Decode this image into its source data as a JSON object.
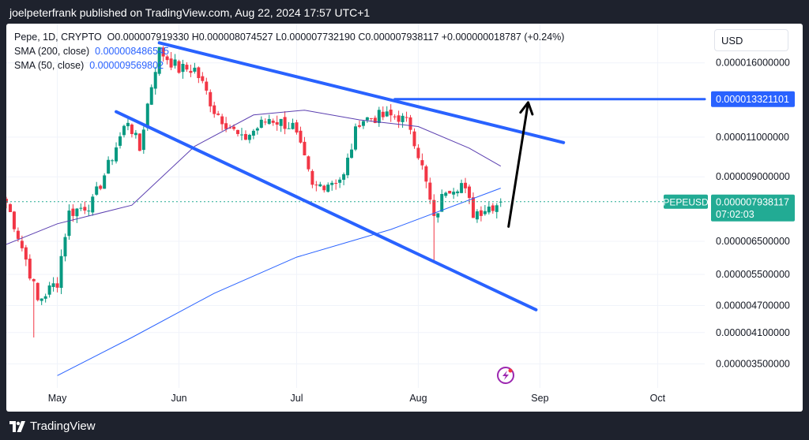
{
  "header": {
    "publisher_line": "joelpeterfrank published on TradingView.com, Aug 22, 2024 17:57 UTC+1"
  },
  "legend": {
    "symbol_line": "Pepe, 1D, CRYPTO",
    "ohlc": "O0.000007919330 H0.000008074527 L0.000007732190 C0.000007938117 +0.000000018787 (+0.24%)",
    "sma200_label": "SMA (200, close)",
    "sma200_value": "0.000008486545",
    "sma50_label": "SMA (50, close)",
    "sma50_value": "0.000009569802"
  },
  "currency_button": "USD",
  "brand": {
    "name": "TradingView",
    "logo_icon": "tradingview-logo-icon"
  },
  "colors": {
    "up": "#089981",
    "down": "#f23645",
    "sma200": "#2962ff",
    "sma50": "#5b3fb0",
    "drawing": "#2962ff",
    "arrow": "#000000",
    "price_tag": "#22ab94",
    "grid": "#f0f3fa"
  },
  "chart_data": {
    "type": "candlestick",
    "symbol": "PEPEUSD",
    "interval": "1D",
    "x_tick_labels": [
      "May",
      "Jun",
      "Jul",
      "Aug",
      "Sep",
      "Oct"
    ],
    "x_ticks": [
      "2024-05-01",
      "2024-06-01",
      "2024-07-01",
      "2024-08-01",
      "2024-09-01",
      "2024-10-01"
    ],
    "y_scale": "log",
    "y_tick_labels": [
      "0.000016000000",
      "0.000011000000",
      "0.000009000000",
      "0.000006500000",
      "0.000005500000",
      "0.000004700000",
      "0.000004100000",
      "0.000003500000"
    ],
    "y_ticks": [
      1.6e-05,
      1.1e-05,
      9e-06,
      6.5e-06,
      5.5e-06,
      4.7e-06,
      4.1e-06,
      3.5e-06
    ],
    "x_range": [
      "2024-04-18",
      "2024-10-13"
    ],
    "y_range": [
      3.1e-06,
      1.95e-05
    ],
    "last_price": {
      "label": "PEPEUSD",
      "value": "0.000007938117",
      "countdown": "07:02:03",
      "numeric": 7.938117e-06
    },
    "target_price": {
      "value": "0.000013321101",
      "numeric": 1.3321101e-05
    },
    "anchors": [
      [
        "2024-04-18",
        7.9e-06
      ],
      [
        "2024-04-22",
        6.3e-06
      ],
      [
        "2024-04-26",
        4.8e-06
      ],
      [
        "2024-05-01",
        5.3e-06
      ],
      [
        "2024-05-04",
        7.5e-06
      ],
      [
        "2024-05-10",
        7.9e-06
      ],
      [
        "2024-05-14",
        9.5e-06
      ],
      [
        "2024-05-19",
        1.2e-05
      ],
      [
        "2024-05-22",
        1.03e-05
      ],
      [
        "2024-05-27",
        1.7e-05
      ],
      [
        "2024-06-01",
        1.55e-05
      ],
      [
        "2024-06-05",
        1.55e-05
      ],
      [
        "2024-06-10",
        1.26e-05
      ],
      [
        "2024-06-17",
        1.08e-05
      ],
      [
        "2024-06-24",
        1.21e-05
      ],
      [
        "2024-06-30",
        1.16e-05
      ],
      [
        "2024-07-05",
        8.5e-06
      ],
      [
        "2024-07-08",
        8.7e-06
      ],
      [
        "2024-07-13",
        9e-06
      ],
      [
        "2024-07-17",
        1.2e-05
      ],
      [
        "2024-07-22",
        1.22e-05
      ],
      [
        "2024-07-27",
        1.22e-05
      ],
      [
        "2024-07-30",
        1.16e-05
      ],
      [
        "2024-08-05",
        7.2e-06
      ],
      [
        "2024-08-08",
        8.5e-06
      ],
      [
        "2024-08-12",
        8.7e-06
      ],
      [
        "2024-08-15",
        7.5e-06
      ],
      [
        "2024-08-22",
        7.938117e-06
      ]
    ],
    "extreme_wicks": [
      {
        "date": "2024-04-25",
        "low": 4e-06
      },
      {
        "date": "2024-08-05",
        "low": 5.9e-06
      },
      {
        "date": "2024-05-27",
        "high": 1.72e-05
      }
    ],
    "sma200_points": [
      [
        "2024-05-01",
        3.3e-06
      ],
      [
        "2024-05-20",
        4e-06
      ],
      [
        "2024-06-10",
        5e-06
      ],
      [
        "2024-07-01",
        6e-06
      ],
      [
        "2024-07-25",
        6.9e-06
      ],
      [
        "2024-08-22",
        8.5e-06
      ]
    ],
    "sma50_points": [
      [
        "2024-04-18",
        6.4e-06
      ],
      [
        "2024-05-01",
        7.1e-06
      ],
      [
        "2024-05-20",
        7.8e-06
      ],
      [
        "2024-06-05",
        1.05e-05
      ],
      [
        "2024-06-20",
        1.23e-05
      ],
      [
        "2024-07-03",
        1.26e-05
      ],
      [
        "2024-07-17",
        1.2e-05
      ],
      [
        "2024-08-01",
        1.16e-05
      ],
      [
        "2024-08-14",
        1.04e-05
      ],
      [
        "2024-08-22",
        9.5e-06
      ]
    ],
    "drawings": {
      "upper_trendline": [
        [
          "2024-05-27",
          1.77e-05
        ],
        [
          "2024-09-07",
          1.07e-05
        ]
      ],
      "lower_trendline": [
        [
          "2024-05-16",
          1.25e-05
        ],
        [
          "2024-08-31",
          4.6e-06
        ]
      ],
      "target_line": [
        [
          "2024-07-26",
          1.3321101e-05
        ],
        [
          "2024-10-13",
          1.3321101e-05
        ]
      ],
      "arrow": [
        [
          "2024-08-24",
          7e-06
        ],
        [
          "2024-08-29",
          1.31e-05
        ]
      ]
    }
  }
}
